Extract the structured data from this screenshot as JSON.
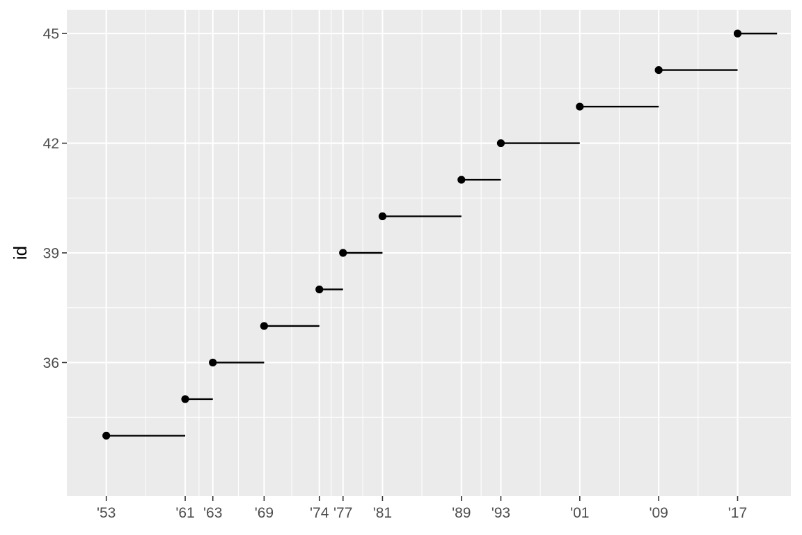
{
  "chart_data": {
    "type": "line",
    "title": "",
    "xlabel": "",
    "ylabel": "id",
    "grid": true,
    "legend": "none",
    "xlim": [
      1949.0,
      2022.4
    ],
    "ylim": [
      32.35,
      45.65
    ],
    "x_ticks": [
      {
        "value": 1953,
        "label": "'53"
      },
      {
        "value": 1961,
        "label": "'61"
      },
      {
        "value": 1963.8,
        "label": "'63"
      },
      {
        "value": 1969,
        "label": "'69"
      },
      {
        "value": 1974.6,
        "label": "'74"
      },
      {
        "value": 1977,
        "label": "'77"
      },
      {
        "value": 1981,
        "label": "'81"
      },
      {
        "value": 1989,
        "label": "'89"
      },
      {
        "value": 1993,
        "label": "'93"
      },
      {
        "value": 2001,
        "label": "'01"
      },
      {
        "value": 2009,
        "label": "'09"
      },
      {
        "value": 2017,
        "label": "'17"
      }
    ],
    "y_ticks": [
      {
        "value": 36,
        "label": "36"
      },
      {
        "value": 39,
        "label": "39"
      },
      {
        "value": 42,
        "label": "42"
      },
      {
        "value": 45,
        "label": "45"
      }
    ],
    "segments": [
      {
        "id": 34,
        "start": 1953,
        "end": 1961
      },
      {
        "id": 35,
        "start": 1961,
        "end": 1963.8
      },
      {
        "id": 36,
        "start": 1963.8,
        "end": 1969
      },
      {
        "id": 37,
        "start": 1969,
        "end": 1974.6
      },
      {
        "id": 38,
        "start": 1974.6,
        "end": 1977
      },
      {
        "id": 39,
        "start": 1977,
        "end": 1981
      },
      {
        "id": 40,
        "start": 1981,
        "end": 1989
      },
      {
        "id": 41,
        "start": 1989,
        "end": 1993
      },
      {
        "id": 42,
        "start": 1993,
        "end": 2001
      },
      {
        "id": 43,
        "start": 2001,
        "end": 2009
      },
      {
        "id": 44,
        "start": 2009,
        "end": 2017
      },
      {
        "id": 45,
        "start": 2017,
        "end": 2021
      }
    ],
    "colors": {
      "panel": "#ebebeb",
      "grid": "#ffffff",
      "mark": "#000000",
      "tick_text": "#4d4d4d"
    }
  }
}
